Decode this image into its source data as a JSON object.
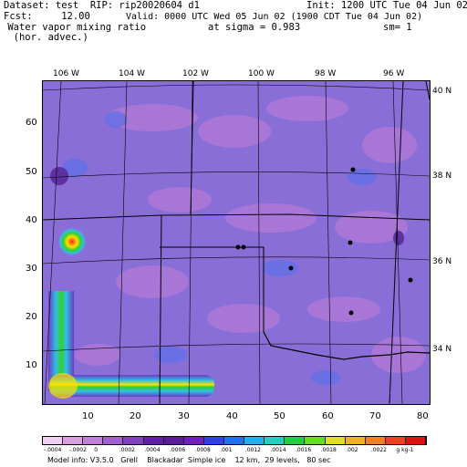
{
  "header": {
    "line1_left": "Dataset: test  RIP: rip20020604 d1",
    "line1_right": "Init: 1200 UTC Tue 04 Jun 02",
    "line2_left": "Fcst:     12.00",
    "line2_right": "Valid: 0000 UTC Wed 05 Jun 02 (1900 CDT Tue 04 Jun 02)",
    "line3_left": " Water vapor mixing ratio",
    "line3_mid": "at sigma = 0.983",
    "line3_right": "sm= 1",
    "line4_left": "  (hor. advec.)"
  },
  "map": {
    "lon_labels": [
      "106 W",
      "104 W",
      "102 W",
      "100 W",
      "98 W",
      "96 W"
    ],
    "lat_labels": [
      "40 N",
      "38 N",
      "36 N",
      "34 N"
    ],
    "x_ticks": [
      "10",
      "20",
      "30",
      "40",
      "50",
      "60",
      "70",
      "80"
    ],
    "y_ticks": [
      "60",
      "50",
      "40",
      "30",
      "20",
      "10"
    ],
    "colors": {
      "background_field": "#8a6ed8",
      "light_patch": "#b078d6",
      "blue_patch": "#6070e8",
      "max_core": "#ff2020",
      "ring_yellow": "#ffe000",
      "ring_green": "#30d030",
      "ring_cyan": "#30c0e0"
    }
  },
  "colorbar": {
    "colors": [
      "#f0d0f0",
      "#d8a0e0",
      "#c080d8",
      "#a060d0",
      "#8040c0",
      "#6020a8",
      "#5a1a9a",
      "#7020c0",
      "#3040e8",
      "#2070f0",
      "#20b0f0",
      "#20d0c0",
      "#20d040",
      "#60e020",
      "#e0e020",
      "#f0b020",
      "#f08020",
      "#f04020",
      "#e01010"
    ],
    "labels": [
      "-.0004",
      "-.0002",
      "0",
      ".0002",
      ".0004",
      ".0006",
      ".0008",
      ".001",
      ".0012",
      ".0014",
      ".0016",
      ".0018",
      ".002",
      ".0022",
      "g kg-1"
    ]
  },
  "footer": {
    "text": "Model info: V3.5.0   Grell    Blackadar  Simple ice    12 km,  29 levels,   80 sec"
  }
}
